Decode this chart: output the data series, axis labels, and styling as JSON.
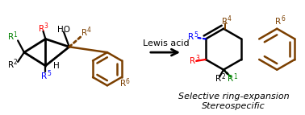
{
  "bg_color": "#ffffff",
  "arrow_color": "#000000",
  "label_lewis": "Lewis acid",
  "label_italic1": "Selective ring-expansion",
  "label_italic2": "Stereospecific",
  "colors": {
    "R1": "#008000",
    "R2": "#000000",
    "R3": "#ff0000",
    "R4": "#7b3f00",
    "R5": "#0000ff",
    "R6": "#7b3f00",
    "HO": "#000000",
    "H": "#000000",
    "bond": "#000000",
    "ring_brown": "#7b3f00"
  },
  "figsize": [
    3.78,
    1.43
  ],
  "dpi": 100
}
